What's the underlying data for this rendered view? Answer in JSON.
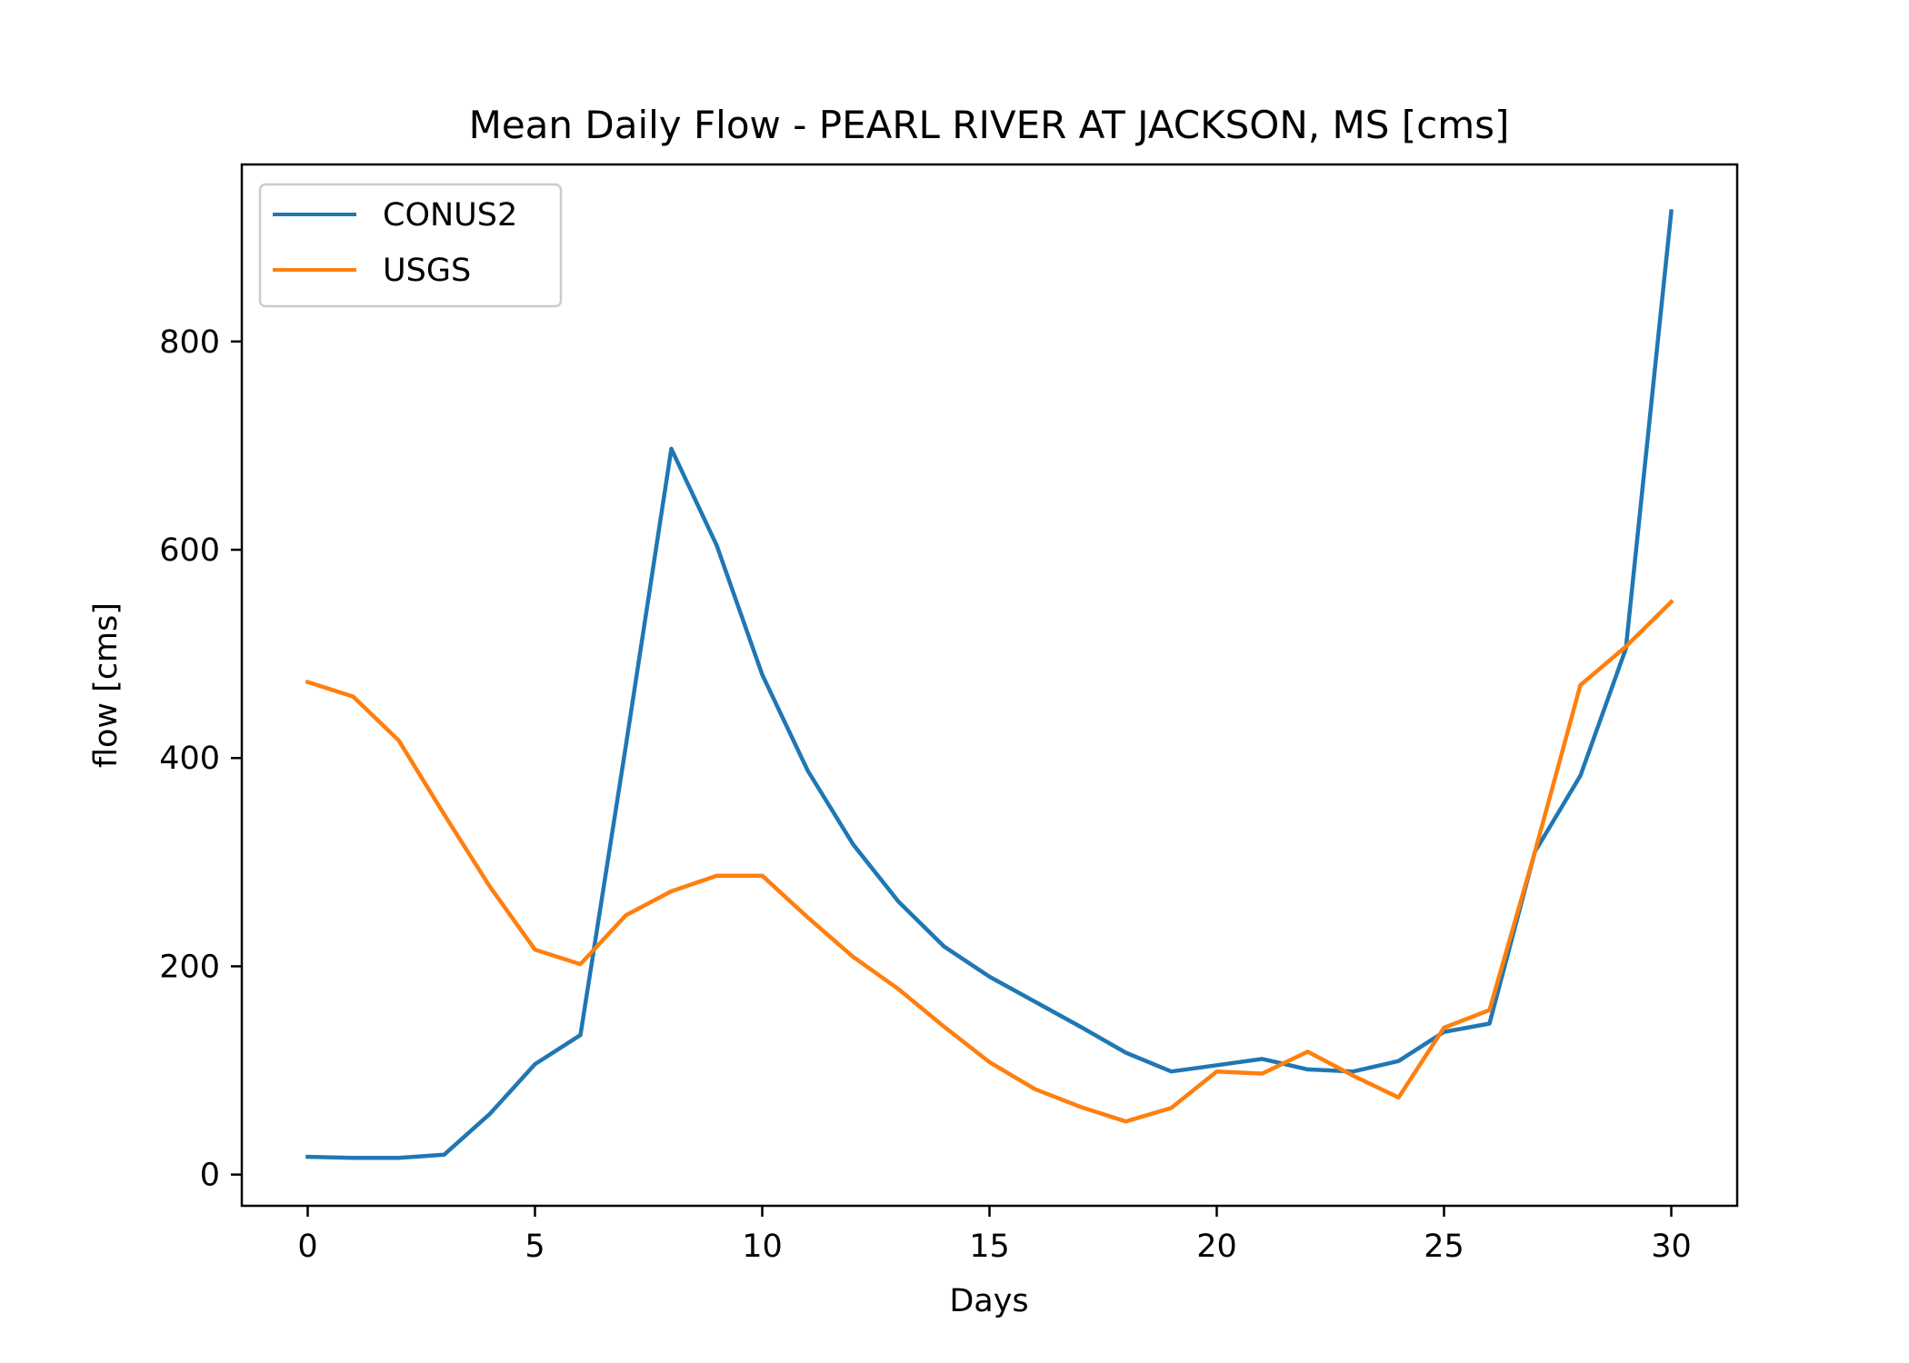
{
  "chart_data": {
    "type": "line",
    "title": "Mean Daily Flow - PEARL RIVER AT JACKSON, MS [cms]",
    "xlabel": "Days",
    "ylabel": "flow [cms]",
    "xlim": [
      -1.45,
      31.45
    ],
    "ylim": [
      -30,
      970
    ],
    "xticks": [
      0,
      5,
      10,
      15,
      20,
      25,
      30
    ],
    "yticks": [
      0,
      200,
      400,
      600,
      800
    ],
    "legend_position": "upper-left",
    "grid": false,
    "x": [
      0,
      1,
      2,
      3,
      4,
      5,
      6,
      7,
      8,
      9,
      10,
      11,
      12,
      13,
      14,
      15,
      16,
      17,
      18,
      19,
      20,
      21,
      22,
      23,
      24,
      25,
      26,
      27,
      28,
      29,
      30
    ],
    "series": [
      {
        "name": "CONUS2",
        "color": "#1f77b4",
        "values": [
          17,
          16,
          16,
          19,
          58,
          106,
          134,
          412,
          697,
          604,
          480,
          388,
          317,
          262,
          219,
          190,
          166,
          142,
          117,
          99,
          105,
          111,
          101,
          99,
          109,
          137,
          145,
          310,
          383,
          505,
          925
        ]
      },
      {
        "name": "USGS",
        "color": "#ff7f0e",
        "values": [
          473,
          459,
          417,
          346,
          277,
          216,
          202,
          249,
          272,
          287,
          287,
          247,
          209,
          178,
          142,
          108,
          82,
          65,
          51,
          64,
          99,
          97,
          118,
          95,
          74,
          141,
          158,
          310,
          470,
          507,
          550
        ]
      }
    ]
  }
}
